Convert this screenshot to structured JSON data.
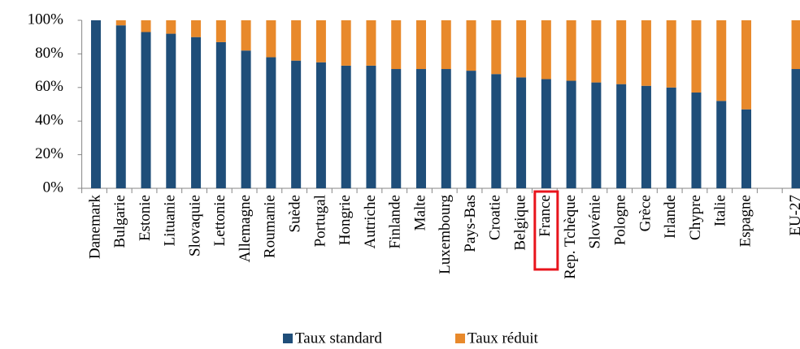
{
  "chart_data": {
    "type": "stacked_bar",
    "categories": [
      "Danemark",
      "Bulgarie",
      "Estonie",
      "Lituanie",
      "Slovaquie",
      "Lettonie",
      "Allemagne",
      "Roumanie",
      "Suède",
      "Portugal",
      "Hongrie",
      "Autriche",
      "Finlande",
      "Malte",
      "Luxembourg",
      "Pays-Bas",
      "Croatie",
      "Belgique",
      "France",
      "Rep. Tchèque",
      "Slovénie",
      "Pologne",
      "Grèce",
      "Irlande",
      "Chypre",
      "Italie",
      "Espagne",
      null,
      "EU-27"
    ],
    "series": [
      {
        "name": "Taux standard",
        "color": "#1f4e79",
        "values": [
          100,
          97,
          93,
          92,
          90,
          87,
          82,
          78,
          76,
          75,
          73,
          73,
          71,
          71,
          71,
          70,
          68,
          66,
          65,
          64,
          63,
          62,
          61,
          60,
          57,
          52,
          47,
          null,
          71
        ]
      },
      {
        "name": "Taux réduit",
        "color": "#e8892b",
        "values": [
          0,
          3,
          7,
          8,
          10,
          13,
          18,
          22,
          24,
          25,
          27,
          27,
          29,
          29,
          29,
          30,
          32,
          34,
          35,
          36,
          37,
          38,
          39,
          40,
          43,
          48,
          53,
          null,
          29
        ]
      }
    ],
    "ylim": [
      0,
      100
    ],
    "yticks": [
      {
        "value": 0,
        "label": "0%"
      },
      {
        "value": 20,
        "label": "20%"
      },
      {
        "value": 40,
        "label": "40%"
      },
      {
        "value": 60,
        "label": "60%"
      },
      {
        "value": 80,
        "label": "80%"
      },
      {
        "value": 100,
        "label": "100%"
      }
    ],
    "grid": false,
    "legend": "bottom"
  }
}
